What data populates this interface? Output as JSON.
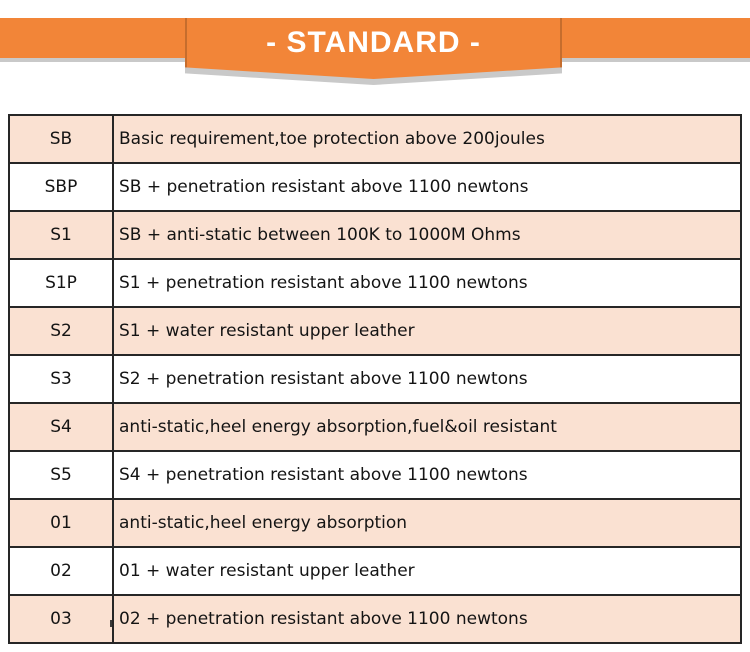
{
  "banner": {
    "title": "- STANDARD -"
  },
  "table": {
    "rows": [
      {
        "code": "SB",
        "desc": "Basic requirement,toe protection above 200joules"
      },
      {
        "code": "SBP",
        "desc": "SB + penetration resistant above 1100 newtons"
      },
      {
        "code": "S1",
        "desc": "SB + anti-static between 100K to 1000M Ohms"
      },
      {
        "code": "S1P",
        "desc": "S1 + penetration resistant above 1100 newtons"
      },
      {
        "code": "S2",
        "desc": "S1 + water resistant upper leather"
      },
      {
        "code": "S3",
        "desc": "S2 + penetration resistant above 1100 newtons"
      },
      {
        "code": "S4",
        "desc": "anti-static,heel energy absorption,fuel&oil resistant"
      },
      {
        "code": "S5",
        "desc": "S4 + penetration resistant above 1100 newtons"
      },
      {
        "code": "01",
        "desc": "anti-static,heel energy absorption"
      },
      {
        "code": "02",
        "desc": "01 + water resistant upper leather"
      },
      {
        "code": "03",
        "desc": "02 + penetration resistant above 1100 newtons"
      }
    ]
  },
  "colors": {
    "accent_orange": "#f28538",
    "row_shade": "#fae1d2",
    "table_border": "#262626",
    "shadow_gray": "#c9c9c9",
    "text": "#141414"
  }
}
